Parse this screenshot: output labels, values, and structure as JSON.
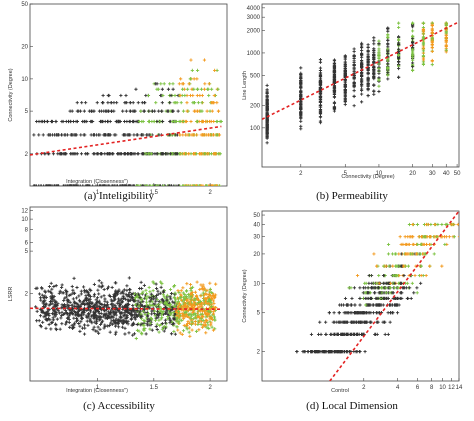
{
  "figure": {
    "colors": {
      "low": "#333333",
      "mid": "#7cc242",
      "high": "#f39a1e",
      "fit": "#e32222",
      "axis": "#444444"
    }
  },
  "chart_data": [
    {
      "type": "scatter",
      "caption": "(a) Inteligibility",
      "xlabel": "Integration (Closenness\")",
      "ylabel": "Connectivity (Degree)",
      "x_scale": "linear",
      "y_scale": "log",
      "xlim": [
        0.4,
        2.15
      ],
      "ylim": [
        1,
        50
      ],
      "x_ticks": [
        {
          "v": 1,
          "label": "1"
        },
        {
          "v": 1.5,
          "label": "1.5"
        },
        {
          "v": 2,
          "label": "2"
        }
      ],
      "y_ticks": [
        {
          "v": 2,
          "label": "2"
        },
        {
          "v": 5,
          "label": "5"
        },
        {
          "v": 10,
          "label": "10"
        },
        {
          "v": 20,
          "label": "20"
        },
        {
          "v": 50,
          "label": "50"
        }
      ],
      "x_range": [
        0.4,
        2.1
      ],
      "y_levels": [
        1,
        2,
        3,
        4,
        5,
        6,
        7,
        8,
        9,
        10,
        12,
        15,
        20,
        30
      ],
      "y_levels_discrete": true,
      "fit_line": {
        "x0": 0.4,
        "y0": 1.95,
        "x1": 2.1,
        "y1": 3.6
      },
      "points_n": 900
    },
    {
      "type": "scatter",
      "caption": "(b) Permeability",
      "xlabel": "Connectivity (Degree)",
      "ylabel": "Line Length",
      "x_scale": "log",
      "y_scale": "log",
      "xlim": [
        0.9,
        52
      ],
      "ylim": [
        30,
        4500
      ],
      "x_ticks": [
        {
          "v": 2,
          "label": "2"
        },
        {
          "v": 5,
          "label": "5"
        },
        {
          "v": 10,
          "label": "10"
        },
        {
          "v": 20,
          "label": "20"
        },
        {
          "v": 30,
          "label": "30"
        },
        {
          "v": 40,
          "label": "40"
        },
        {
          "v": 50,
          "label": "50"
        }
      ],
      "y_ticks": [
        {
          "v": 100,
          "label": "100"
        },
        {
          "v": 200,
          "label": "200"
        },
        {
          "v": 500,
          "label": "500"
        },
        {
          "v": 1000,
          "label": "1000"
        },
        {
          "v": 2000,
          "label": "2000"
        },
        {
          "v": 3000,
          "label": "3000"
        },
        {
          "v": 4000,
          "label": "4000"
        }
      ],
      "x_levels": [
        1,
        2,
        3,
        4,
        5,
        6,
        7,
        8,
        9,
        10,
        12,
        15,
        20,
        25,
        30,
        40
      ],
      "x_levels_discrete": true,
      "y_range": [
        50,
        2500
      ],
      "fit_line": {
        "x0": 0.9,
        "y0": 130,
        "x1": 52,
        "y1": 2600
      },
      "points_n": 1000
    },
    {
      "type": "scatter",
      "caption": "(c) Accessibility",
      "xlabel": "Integration (Closenness\")",
      "ylabel": "LSRR",
      "x_scale": "linear",
      "y_scale": "log",
      "xlim": [
        0.4,
        2.15
      ],
      "ylim": [
        0.3,
        13
      ],
      "x_ticks": [
        {
          "v": 1,
          "label": "1"
        },
        {
          "v": 1.5,
          "label": "1.5"
        },
        {
          "v": 2,
          "label": "2"
        }
      ],
      "y_ticks": [
        {
          "v": 2,
          "label": "2"
        },
        {
          "v": 5,
          "label": "5"
        },
        {
          "v": 6,
          "label": "6"
        },
        {
          "v": 8,
          "label": "8"
        },
        {
          "v": 10,
          "label": "10"
        },
        {
          "v": 12,
          "label": "12"
        }
      ],
      "x_range": [
        0.45,
        2.05
      ],
      "y_center": 1.45,
      "fit_line": {
        "x0": 0.4,
        "y0": 1.45,
        "x1": 2.1,
        "y1": 1.42
      },
      "points_n": 1400
    },
    {
      "type": "scatter",
      "caption": "(d) Local Dimension",
      "xlabel": "Control",
      "ylabel": "Connectivity (Degree)",
      "x_scale": "log",
      "y_scale": "log",
      "xlim": [
        0.25,
        14
      ],
      "ylim": [
        1,
        55
      ],
      "x_ticks": [
        {
          "v": 2,
          "label": "2"
        },
        {
          "v": 4,
          "label": "4"
        },
        {
          "v": 6,
          "label": "6"
        },
        {
          "v": 8,
          "label": "8"
        },
        {
          "v": 10,
          "label": "10"
        },
        {
          "v": 12,
          "label": "12"
        },
        {
          "v": 14,
          "label": "14"
        }
      ],
      "y_ticks": [
        {
          "v": 2,
          "label": "2"
        },
        {
          "v": 5,
          "label": "5"
        },
        {
          "v": 10,
          "label": "10"
        },
        {
          "v": 20,
          "label": "20"
        },
        {
          "v": 30,
          "label": "30"
        },
        {
          "v": 40,
          "label": "40"
        },
        {
          "v": 50,
          "label": "50"
        }
      ],
      "y_levels": [
        2,
        3,
        4,
        5,
        6,
        7,
        8,
        9,
        10,
        12,
        15,
        20,
        25,
        30,
        40
      ],
      "y_levels_discrete": true,
      "fit_line": {
        "x0": 1.0,
        "y0": 1.0,
        "x1": 14,
        "y1": 55
      },
      "points_n": 700
    }
  ]
}
